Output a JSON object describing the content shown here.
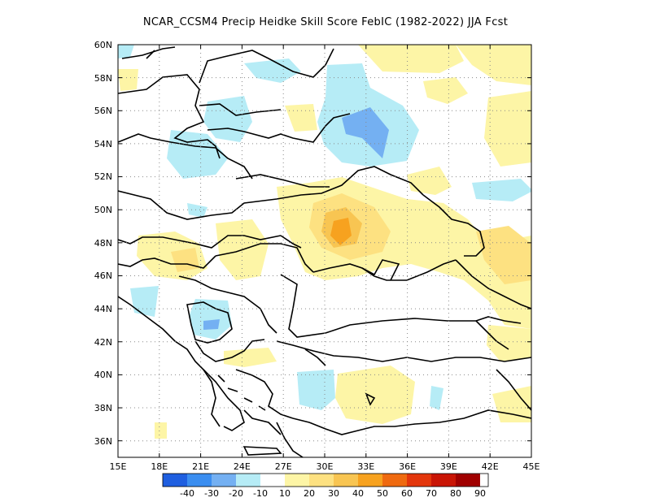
{
  "title": "NCAR_CCSM4 Precip Heidke Skill Score FebIC (1982-2022) JJA Fcst",
  "map": {
    "lon_ticks": [
      "15E",
      "18E",
      "21E",
      "24E",
      "27E",
      "30E",
      "33E",
      "36E",
      "39E",
      "42E",
      "45E"
    ],
    "lat_ticks": [
      "60N",
      "58N",
      "56N",
      "54N",
      "52N",
      "50N",
      "48N",
      "46N",
      "44N",
      "42N",
      "40N",
      "38N",
      "36N"
    ],
    "lon_range": [
      15,
      45
    ],
    "lat_range": [
      35,
      60
    ],
    "grid": true
  },
  "colorbar": {
    "labels": [
      "-40",
      "-30",
      "-20",
      "-10",
      "10",
      "20",
      "30",
      "40",
      "50",
      "60",
      "70",
      "80",
      "90"
    ],
    "colors": [
      "#1f5fe0",
      "#3b8ef0",
      "#74b0f2",
      "#b6ecf6",
      "#ffffff",
      "#fdf5a6",
      "#fde181",
      "#f8c552",
      "#f7a21f",
      "#ef6a10",
      "#e3360c",
      "#c91505",
      "#a00000"
    ]
  },
  "colors": {
    "light_blue": "#b6ecf6",
    "mid_blue": "#74b0f2",
    "light_yellow": "#fdf5a6",
    "yellow": "#fde181",
    "orange_light": "#f8c552",
    "orange": "#f7a21f"
  }
}
